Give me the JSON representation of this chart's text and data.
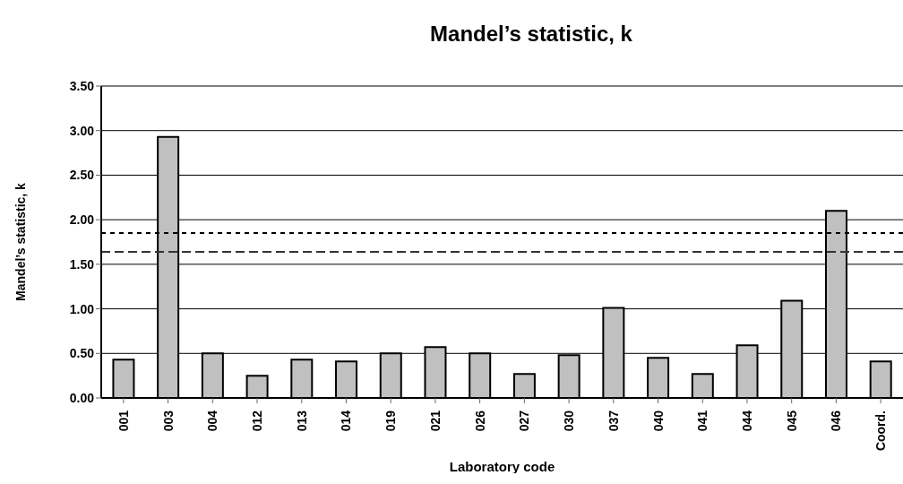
{
  "chart_data": {
    "type": "bar",
    "title": "Mandel’s statistic, k",
    "xlabel": "Laboratory code",
    "ylabel": "Mandel’s statistic, k",
    "categories": [
      "001",
      "003",
      "004",
      "012",
      "013",
      "014",
      "019",
      "021",
      "026",
      "027",
      "030",
      "037",
      "040",
      "041",
      "044",
      "045",
      "046",
      "Coord."
    ],
    "values": [
      0.43,
      2.93,
      0.5,
      0.25,
      0.43,
      0.41,
      0.5,
      0.57,
      0.5,
      0.27,
      0.48,
      1.01,
      0.45,
      0.27,
      0.59,
      1.09,
      2.1,
      0.41
    ],
    "color": "#c0c0c0",
    "ylim": [
      0,
      3.5
    ],
    "yticks": [
      {
        "value": 0,
        "label": "0.00"
      },
      {
        "value": 0.5,
        "label": "0.50"
      },
      {
        "value": 1,
        "label": "1.00"
      },
      {
        "value": 1.5,
        "label": "1.50"
      },
      {
        "value": 2,
        "label": "2.00"
      },
      {
        "value": 2.5,
        "label": "2.50"
      },
      {
        "value": 3,
        "label": "3.00"
      },
      {
        "value": 3.5,
        "label": "3.50"
      }
    ],
    "grid": "y",
    "ref_lines": [
      {
        "axis": "y",
        "value": 1.85,
        "line_style": "dotted",
        "color": "#000000"
      },
      {
        "axis": "y",
        "value": 1.64,
        "line_style": "dashed",
        "color": "#333333"
      }
    ]
  }
}
